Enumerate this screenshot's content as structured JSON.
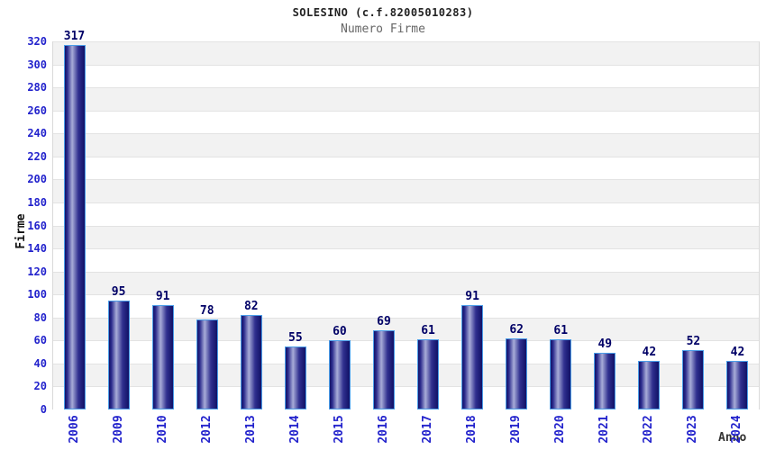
{
  "chart_data": {
    "type": "bar",
    "title": "SOLESINO (c.f.82005010283)",
    "subtitle": "Numero Firme",
    "xlabel": "Anno",
    "ylabel": "Firme",
    "categories": [
      "2006",
      "2009",
      "2010",
      "2012",
      "2013",
      "2014",
      "2015",
      "2016",
      "2017",
      "2018",
      "2019",
      "2020",
      "2021",
      "2022",
      "2023",
      "2024"
    ],
    "values": [
      317,
      95,
      91,
      78,
      82,
      55,
      60,
      69,
      61,
      91,
      62,
      61,
      49,
      42,
      52,
      42
    ],
    "ylim": [
      0,
      320
    ],
    "ytick_step": 20,
    "yticks": [
      0,
      20,
      40,
      60,
      80,
      100,
      120,
      140,
      160,
      180,
      200,
      220,
      240,
      260,
      280,
      300,
      320
    ],
    "grid": true,
    "legend": "none",
    "colors": {
      "bar_dark": "#15156b",
      "bar_mid": "#2a2a8c",
      "bar_light": "#a8acd8",
      "bar_mid2": "#30308f",
      "bar_border": "#4a9de8",
      "tick_label": "#2222cc",
      "value_label": "#000066",
      "band_gray": "#f2f2f2",
      "band_white": "#ffffff",
      "gridline": "#e3e3e3",
      "title_color": "#222222",
      "subtitle_color": "#666666",
      "axis_title_color": "#333333"
    }
  }
}
